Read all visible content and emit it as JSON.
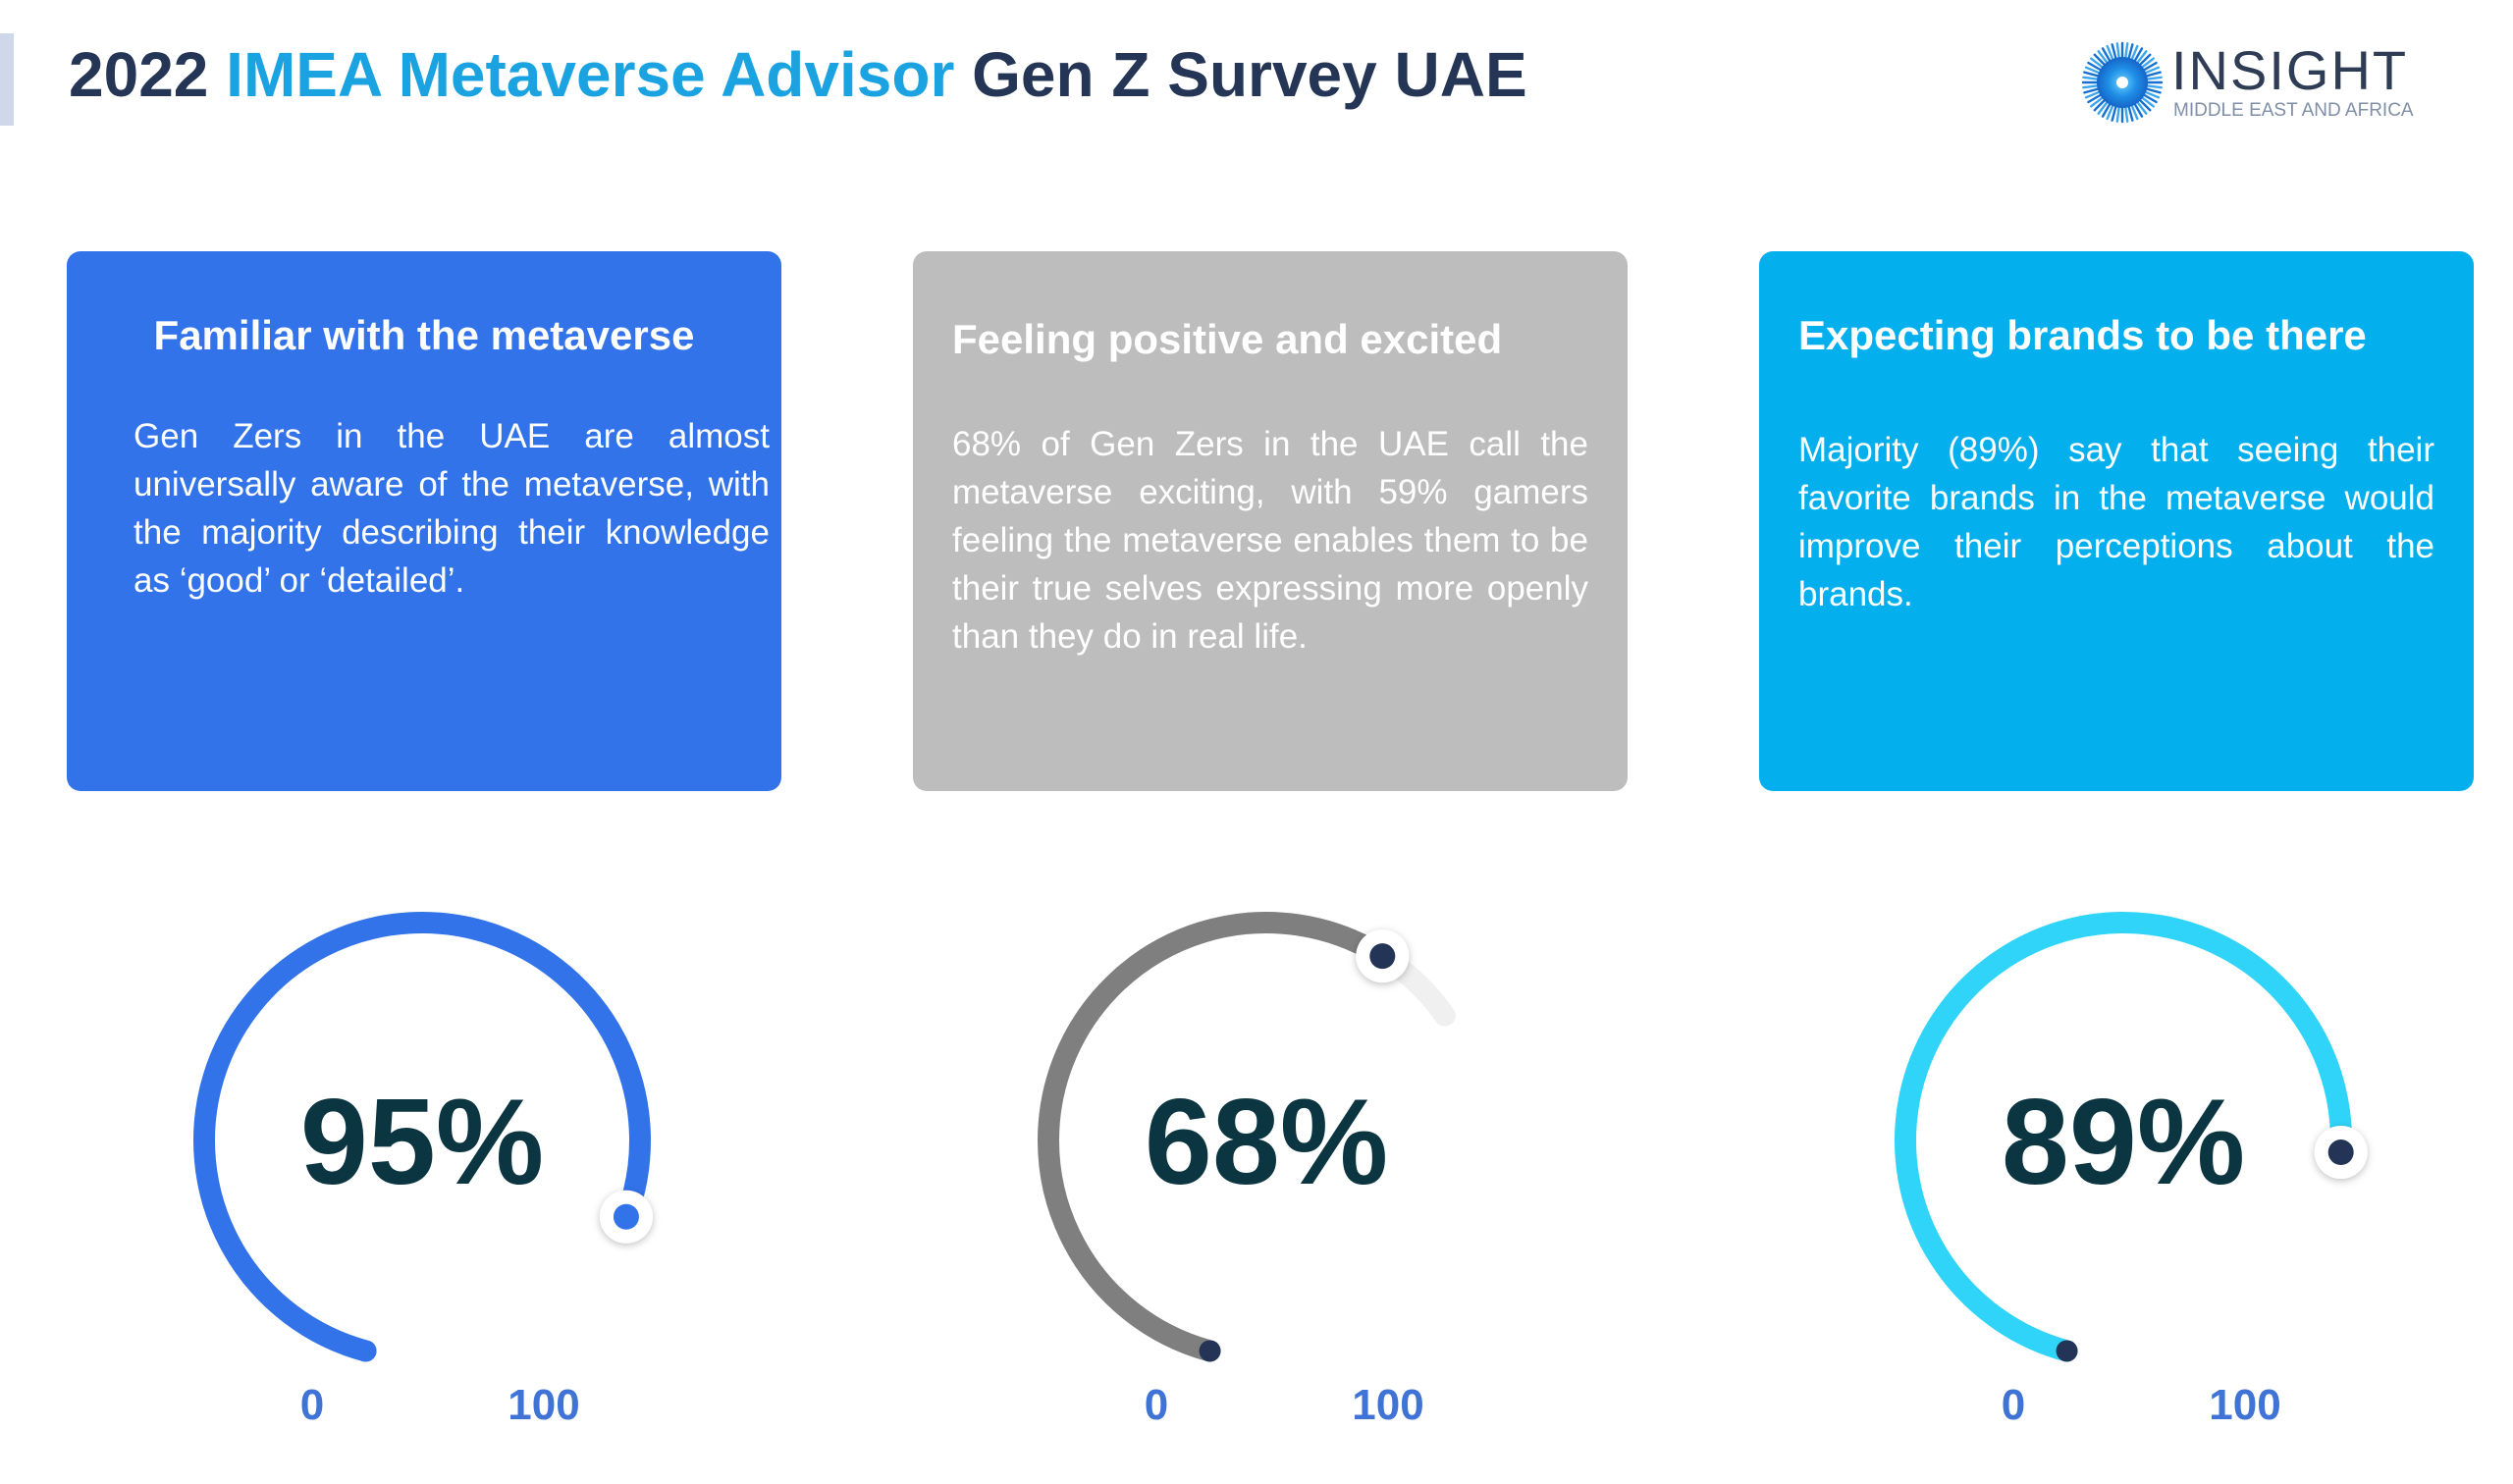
{
  "header": {
    "title_year": "2022",
    "title_brand": "IMEA Metaverse Advisor",
    "title_rest": "Gen Z Survey UAE",
    "accent_color": "#1aa3e0",
    "text_color": "#243556"
  },
  "logo": {
    "word": "INSIGHT",
    "subtitle": "MIDDLE EAST AND AFRICA",
    "icon": "sunburst-logo-icon"
  },
  "cards": [
    {
      "heading": "Familiar with the metaverse",
      "body": "Gen Zers in the UAE  are almost universally aware of the metaverse, with the majority describing their knowledge as ‘good’ or ‘detailed’.",
      "color": "#3273ea"
    },
    {
      "heading": "Feeling positive and excited",
      "body": "68% of Gen Zers in the UAE call the metaverse exciting, with 59% gamers feeling the metaverse enables them to be their true selves expressing more openly than they do in real life.",
      "color": "#bdbdbd"
    },
    {
      "heading": "Expecting brands to be there",
      "body": "Majority (89%) say that seeing their favorite brands in the metaverse would improve their perceptions about the brands.",
      "color": "#03b0ed"
    }
  ],
  "chart_data": [
    {
      "type": "gauge",
      "value": 95,
      "label": "95%",
      "min": 0,
      "max": 100,
      "min_label": "0",
      "max_label": "100",
      "color": "#3273ea",
      "track_color": "#ececec",
      "knob_color": "#3273ea"
    },
    {
      "type": "gauge",
      "value": 68,
      "label": "68%",
      "min": 0,
      "max": 100,
      "min_label": "0",
      "max_label": "100",
      "color": "#7f7f7f",
      "track_color": "#f0f0f0",
      "knob_color": "#233456"
    },
    {
      "type": "gauge",
      "value": 89,
      "label": "89%",
      "min": 0,
      "max": 100,
      "min_label": "0",
      "max_label": "100",
      "color": "#30d4f8",
      "track_color": "#ececec",
      "knob_color": "#233456"
    }
  ]
}
